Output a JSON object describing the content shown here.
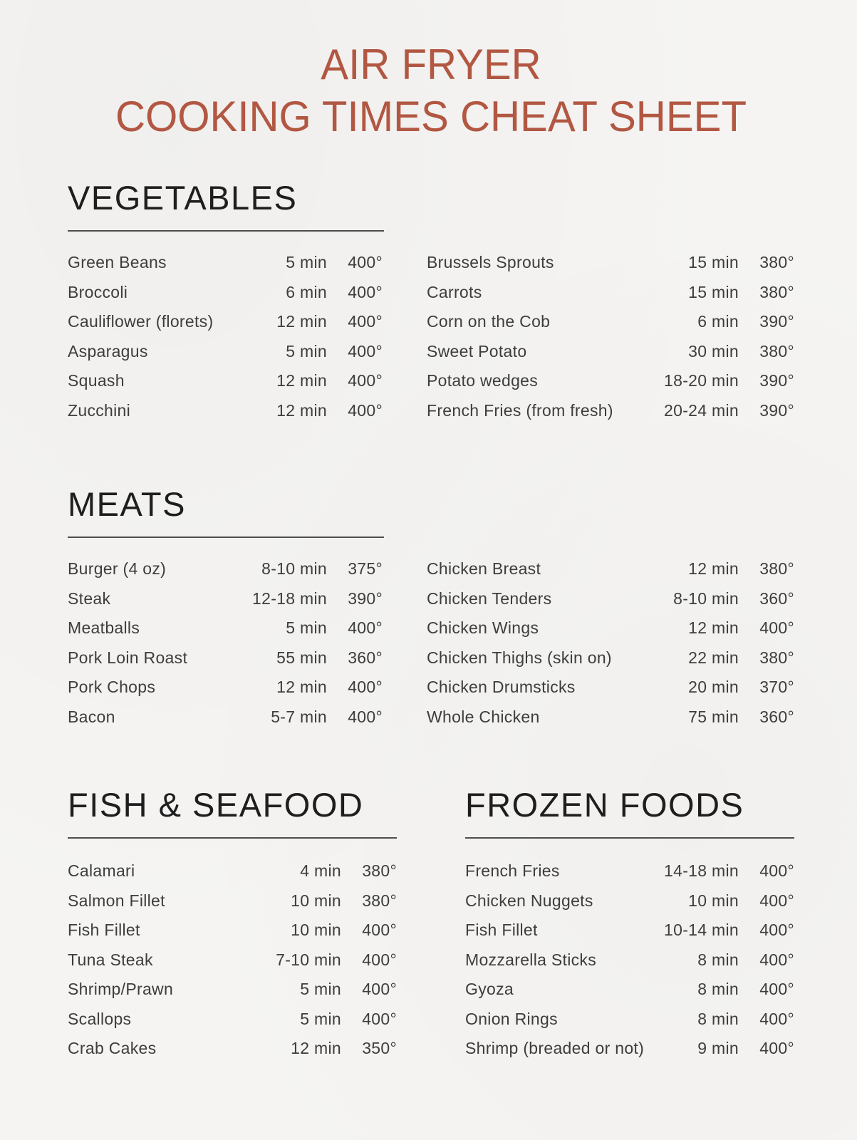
{
  "title": {
    "line1": "AIR FRYER",
    "line2": "COOKING TIMES CHEAT SHEET"
  },
  "colors": {
    "accent": "#b25742",
    "ink": "#1e1e1e",
    "text": "#3d3d3d",
    "paper": "#f5f4f2",
    "rule": "#4d4d4d"
  },
  "sections": {
    "vegetables": {
      "heading": "VEGETABLES",
      "columns": [
        [
          {
            "name": "Green Beans",
            "time": "5 min",
            "temp": "400°"
          },
          {
            "name": "Broccoli",
            "time": "6 min",
            "temp": "400°"
          },
          {
            "name": "Cauliflower (florets)",
            "time": "12 min",
            "temp": "400°"
          },
          {
            "name": "Asparagus",
            "time": "5 min",
            "temp": "400°"
          },
          {
            "name": "Squash",
            "time": "12 min",
            "temp": "400°"
          },
          {
            "name": "Zucchini",
            "time": "12 min",
            "temp": "400°"
          }
        ],
        [
          {
            "name": "Brussels Sprouts",
            "time": "15 min",
            "temp": "380°"
          },
          {
            "name": "Carrots",
            "time": "15 min",
            "temp": "380°"
          },
          {
            "name": "Corn on the Cob",
            "time": "6 min",
            "temp": "390°"
          },
          {
            "name": "Sweet Potato",
            "time": "30 min",
            "temp": "380°"
          },
          {
            "name": "Potato wedges",
            "time": "18-20 min",
            "temp": "390°"
          },
          {
            "name": "French Fries (from fresh)",
            "time": "20-24 min",
            "temp": "390°"
          }
        ]
      ]
    },
    "meats": {
      "heading": "MEATS",
      "columns": [
        [
          {
            "name": "Burger (4 oz)",
            "time": "8-10 min",
            "temp": "375°"
          },
          {
            "name": "Steak",
            "time": "12-18 min",
            "temp": "390°"
          },
          {
            "name": "Meatballs",
            "time": "5 min",
            "temp": "400°"
          },
          {
            "name": "Pork Loin Roast",
            "time": "55 min",
            "temp": "360°"
          },
          {
            "name": "Pork Chops",
            "time": "12 min",
            "temp": "400°"
          },
          {
            "name": "Bacon",
            "time": "5-7 min",
            "temp": "400°"
          }
        ],
        [
          {
            "name": "Chicken Breast",
            "time": "12 min",
            "temp": "380°"
          },
          {
            "name": "Chicken Tenders",
            "time": "8-10 min",
            "temp": "360°"
          },
          {
            "name": "Chicken Wings",
            "time": "12 min",
            "temp": "400°"
          },
          {
            "name": "Chicken Thighs (skin on)",
            "time": "22 min",
            "temp": "380°"
          },
          {
            "name": "Chicken Drumsticks",
            "time": "20 min",
            "temp": "370°"
          },
          {
            "name": "Whole Chicken",
            "time": "75 min",
            "temp": "360°"
          }
        ]
      ]
    },
    "fish_seafood": {
      "heading": "FISH & SEAFOOD",
      "items": [
        {
          "name": "Calamari",
          "time": "4 min",
          "temp": "380°"
        },
        {
          "name": "Salmon Fillet",
          "time": "10 min",
          "temp": "380°"
        },
        {
          "name": "Fish Fillet",
          "time": "10 min",
          "temp": "400°"
        },
        {
          "name": "Tuna Steak",
          "time": "7-10 min",
          "temp": "400°"
        },
        {
          "name": "Shrimp/Prawn",
          "time": "5 min",
          "temp": "400°"
        },
        {
          "name": "Scallops",
          "time": "5 min",
          "temp": "400°"
        },
        {
          "name": "Crab Cakes",
          "time": "12 min",
          "temp": "350°"
        }
      ]
    },
    "frozen_foods": {
      "heading": "FROZEN FOODS",
      "items": [
        {
          "name": "French Fries",
          "time": "14-18 min",
          "temp": "400°"
        },
        {
          "name": "Chicken Nuggets",
          "time": "10 min",
          "temp": "400°"
        },
        {
          "name": "Fish Fillet",
          "time": "10-14 min",
          "temp": "400°"
        },
        {
          "name": "Mozzarella Sticks",
          "time": "8 min",
          "temp": "400°"
        },
        {
          "name": "Gyoza",
          "time": "8 min",
          "temp": "400°"
        },
        {
          "name": "Onion Rings",
          "time": "8 min",
          "temp": "400°"
        },
        {
          "name": "Shrimp (breaded or not)",
          "time": "9 min",
          "temp": "400°"
        }
      ]
    }
  }
}
